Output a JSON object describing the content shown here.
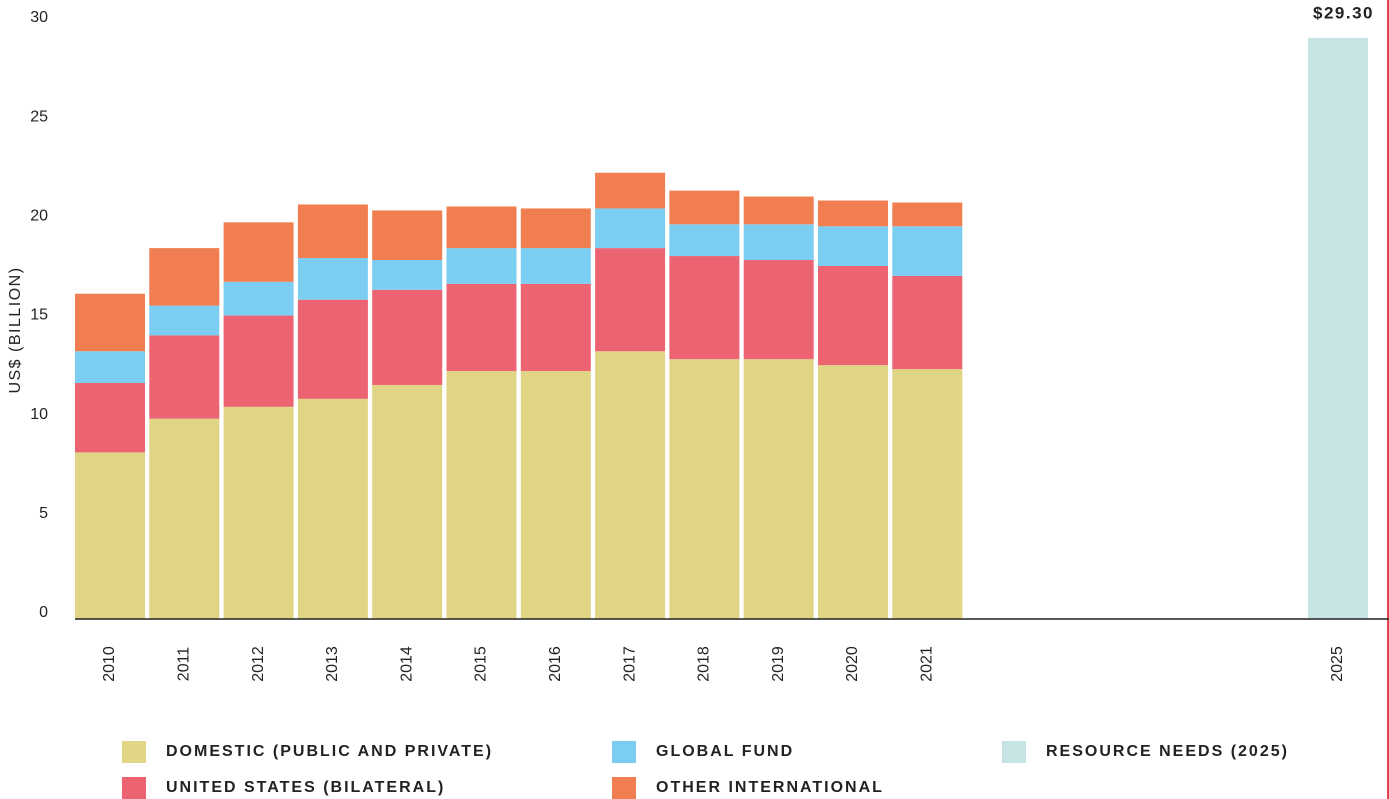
{
  "chart_data": {
    "type": "bar",
    "stacked": true,
    "y_label": "US$ (BILLION)",
    "categories": [
      "2010",
      "2011",
      "2012",
      "2013",
      "2014",
      "2015",
      "2016",
      "2017",
      "2018",
      "2019",
      "2020",
      "2021",
      "2025"
    ],
    "ylim": [
      0,
      30
    ],
    "yticks": [
      0,
      5,
      10,
      15,
      20,
      25,
      30
    ],
    "grid": false,
    "series": [
      {
        "name": "DOMESTIC (PUBLIC AND PRIVATE)",
        "color": "#dfd585",
        "values": [
          8.4,
          10.1,
          10.7,
          11.1,
          11.8,
          12.5,
          12.5,
          13.5,
          13.1,
          13.1,
          12.8,
          12.6,
          null
        ]
      },
      {
        "name": "UNITED STATES (BILATERAL)",
        "color": "#ec6371",
        "values": [
          3.5,
          4.2,
          4.6,
          5.0,
          4.8,
          4.4,
          4.4,
          5.2,
          5.2,
          5.0,
          5.0,
          4.7,
          null
        ]
      },
      {
        "name": "GLOBAL FUND",
        "color": "#7ccdf2",
        "values": [
          1.6,
          1.5,
          1.7,
          2.1,
          1.5,
          1.8,
          1.8,
          2.0,
          1.6,
          1.8,
          2.0,
          2.5,
          null
        ]
      },
      {
        "name": "OTHER INTERNATIONAL",
        "color": "#f07e50",
        "values": [
          2.9,
          2.9,
          3.0,
          2.7,
          2.5,
          2.1,
          2.0,
          1.8,
          1.7,
          1.4,
          1.3,
          1.2,
          null
        ]
      },
      {
        "name": "RESOURCE NEEDS (2025)",
        "color": "#c5e4e3",
        "values": [
          null,
          null,
          null,
          null,
          null,
          null,
          null,
          null,
          null,
          null,
          null,
          null,
          29.3
        ],
        "value_labels": [
          null,
          null,
          null,
          null,
          null,
          null,
          null,
          null,
          null,
          null,
          null,
          null,
          "$29.30"
        ]
      }
    ]
  }
}
